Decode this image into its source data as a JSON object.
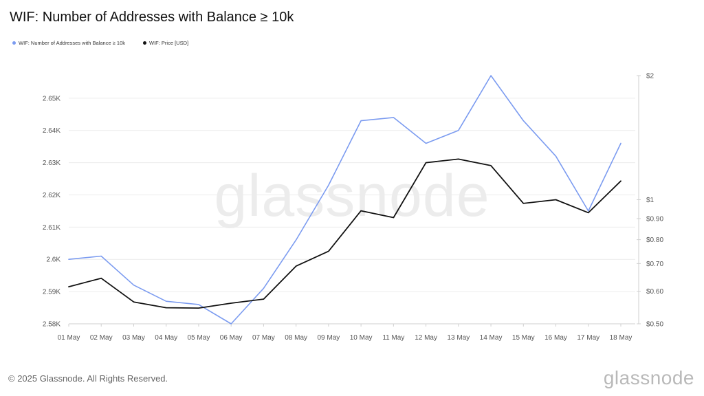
{
  "title": "WIF: Number of Addresses with Balance ≥ 10k",
  "watermark": "glassnode",
  "footer": {
    "copyright": "© 2025 Glassnode. All Rights Reserved.",
    "logo": "glassnode"
  },
  "chart_data": {
    "type": "line",
    "title": "WIF: Number of Addresses with Balance ≥ 10k",
    "legend_placement": "top-left",
    "grid": true,
    "categories": [
      "01 May",
      "02 May",
      "03 May",
      "04 May",
      "05 May",
      "06 May",
      "07 May",
      "08 May",
      "09 May",
      "10 May",
      "11 May",
      "12 May",
      "13 May",
      "14 May",
      "15 May",
      "16 May",
      "17 May",
      "18 May"
    ],
    "left_axis": {
      "min": 2580,
      "max": 2657,
      "ticks": [
        2580,
        2590,
        2600,
        2610,
        2620,
        2630,
        2640,
        2650
      ],
      "tick_labels": [
        "2.58K",
        "2.59K",
        "2.6K",
        "2.61K",
        "2.62K",
        "2.63K",
        "2.64K",
        "2.65K"
      ]
    },
    "right_axis": {
      "scale": "log",
      "min": 0.5,
      "max": 2,
      "ticks": [
        0.5,
        0.6,
        0.7,
        0.8,
        0.9,
        1,
        2
      ],
      "tick_labels": [
        "$0.50",
        "$0.60",
        "$0.70",
        "$0.80",
        "$0.90",
        "$1",
        "$2"
      ]
    },
    "series": [
      {
        "name": "WIF: Number of Addresses with Balance ≥ 10k",
        "axis": "left",
        "color": "#7b9bf0",
        "values": [
          2600,
          2601,
          2592,
          2587,
          2586,
          2580,
          2591,
          2606,
          2623,
          2643,
          2644,
          2636,
          2640,
          2657,
          2643,
          2632,
          2615,
          2636
        ]
      },
      {
        "name": "WIF: Price [USD]",
        "axis": "right",
        "color": "#111111",
        "values": [
          0.615,
          0.645,
          0.565,
          0.547,
          0.546,
          0.561,
          0.574,
          0.69,
          0.75,
          0.94,
          0.905,
          1.23,
          1.255,
          1.21,
          0.98,
          1.0,
          0.93,
          1.11
        ]
      }
    ]
  }
}
